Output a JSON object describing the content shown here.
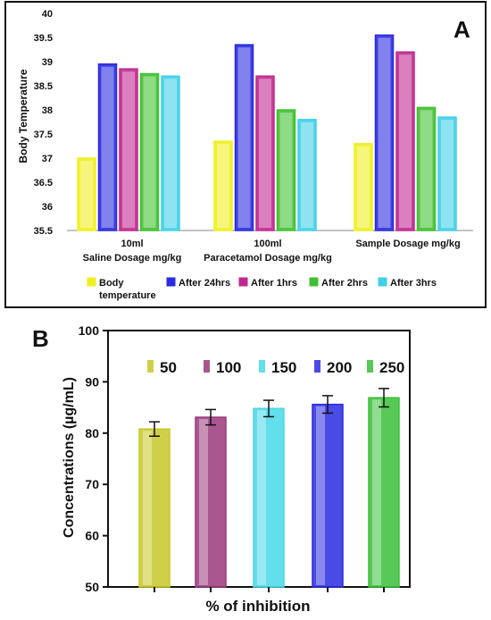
{
  "panels": [
    {
      "label": "A",
      "chart_data": {
        "type": "bar",
        "ylabel": "Body Temperature",
        "ylim": [
          35.5,
          40
        ],
        "yticks": [
          35.5,
          36,
          36.5,
          37,
          37.5,
          38,
          38.5,
          39,
          39.5,
          40
        ],
        "groups": [
          {
            "line1": "10ml",
            "line2": "Saline Dosage mg/kg"
          },
          {
            "line1": "100ml",
            "line2": "Paracetamol Dosage mg/kg"
          },
          {
            "line1": "",
            "line2": "Sample Dosage mg/kg"
          }
        ],
        "series": [
          {
            "name": "Body",
            "name2": "temperature",
            "color": "#f0f020",
            "values": [
              37.0,
              37.35,
              37.3
            ]
          },
          {
            "name": "After 24hrs",
            "color": "#2a2ae0",
            "values": [
              38.95,
              39.35,
              39.55
            ]
          },
          {
            "name": "After 1hrs",
            "color": "#c02890",
            "values": [
              38.85,
              38.7,
              39.2
            ]
          },
          {
            "name": "After 2hrs",
            "color": "#40c030",
            "values": [
              38.75,
              38.0,
              38.05
            ]
          },
          {
            "name": "After 3hrs",
            "color": "#40d0e8",
            "values": [
              38.7,
              37.8,
              37.85
            ]
          }
        ],
        "legend": "bottom",
        "grid": false
      }
    },
    {
      "label": "B",
      "chart_data": {
        "type": "bar",
        "ylabel": "Concentrations (µg/mL)",
        "xlabel": "% of inhibition",
        "ylim": [
          50,
          100
        ],
        "yticks": [
          50,
          60,
          70,
          80,
          90,
          100
        ],
        "categories": [
          "50",
          "100",
          "150",
          "200",
          "250"
        ],
        "values": [
          80.8,
          83.1,
          84.8,
          85.6,
          86.9
        ],
        "errors": [
          1.4,
          1.5,
          1.6,
          1.7,
          1.8
        ],
        "colors": [
          "#c8c828",
          "#9a3a7a",
          "#48d8e8",
          "#2a2ae0",
          "#38c038"
        ],
        "legend": "top",
        "grid": false
      }
    }
  ]
}
